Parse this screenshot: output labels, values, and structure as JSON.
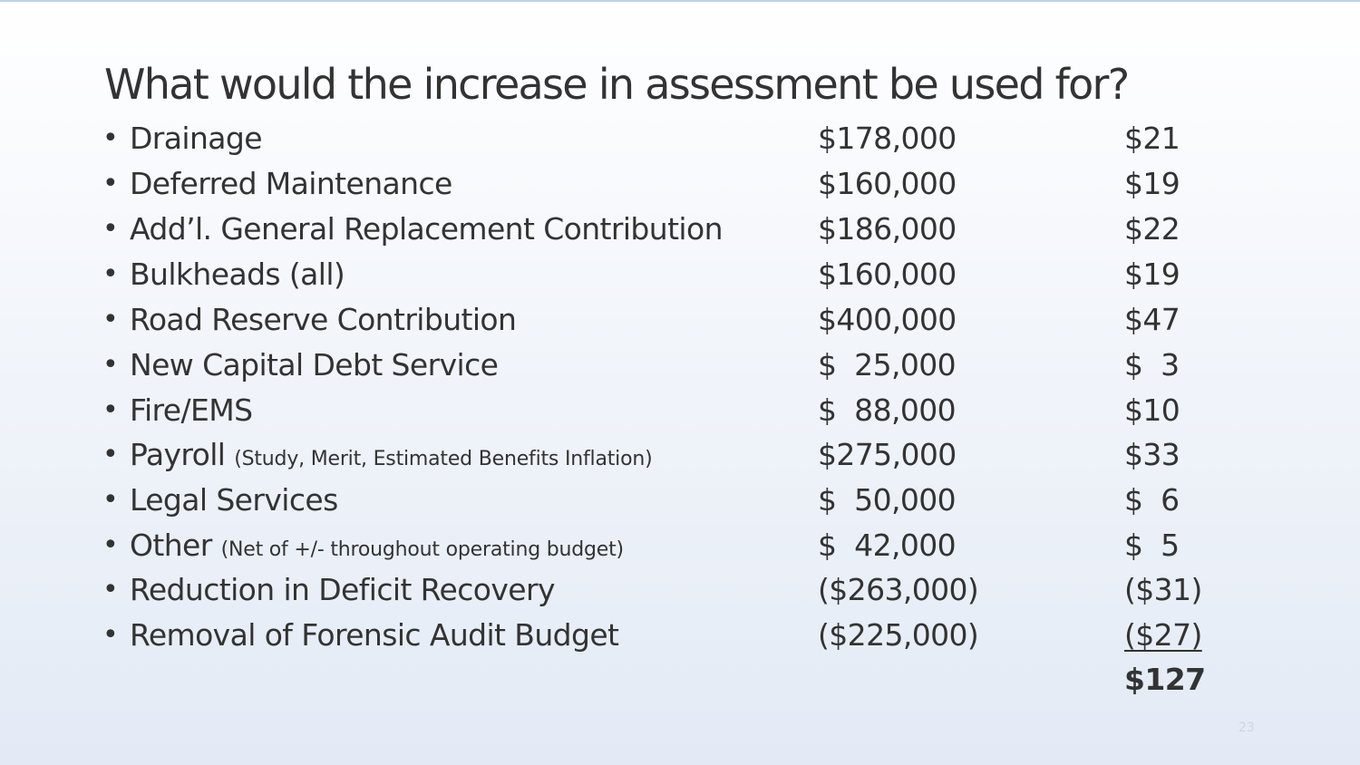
{
  "slide": {
    "title": "What would the increase in assessment be used for?",
    "bullet_glyph": "•",
    "items": [
      {
        "label": "Drainage",
        "note": "",
        "amount": "$178,000",
        "per_unit": "$21"
      },
      {
        "label": "Deferred Maintenance",
        "note": "",
        "amount": "$160,000",
        "per_unit": "$19"
      },
      {
        "label": "Add’l. General Replacement Contribution",
        "note": "",
        "amount": "$186,000",
        "per_unit": "$22"
      },
      {
        "label": "Bulkheads (all)",
        "note": "",
        "amount": "$160,000",
        "per_unit": "$19"
      },
      {
        "label": "Road Reserve Contribution",
        "note": "",
        "amount": "$400,000",
        "per_unit": "$47"
      },
      {
        "label": "New Capital Debt Service",
        "note": "",
        "amount": "$  25,000",
        "per_unit": "$  3"
      },
      {
        "label": "Fire/EMS",
        "note": "",
        "amount": "$  88,000",
        "per_unit": "$10"
      },
      {
        "label": "Payroll",
        "note": "(Study, Merit, Estimated Benefits Inflation)",
        "amount": "$275,000",
        "per_unit": "$33"
      },
      {
        "label": "Legal Services",
        "note": "",
        "amount": "$  50,000",
        "per_unit": "$  6"
      },
      {
        "label": "Other",
        "note": "(Net of +/- throughout operating budget)",
        "amount": "$  42,000",
        "per_unit": "$  5"
      },
      {
        "label": "Reduction in Deficit Recovery",
        "note": "",
        "amount": "($263,000)",
        "per_unit": "($31)"
      },
      {
        "label": "Removal of Forensic Audit Budget",
        "note": "",
        "amount": "($225,000)",
        "per_unit": "($27)"
      }
    ],
    "total": "$127",
    "page_number": "23"
  }
}
